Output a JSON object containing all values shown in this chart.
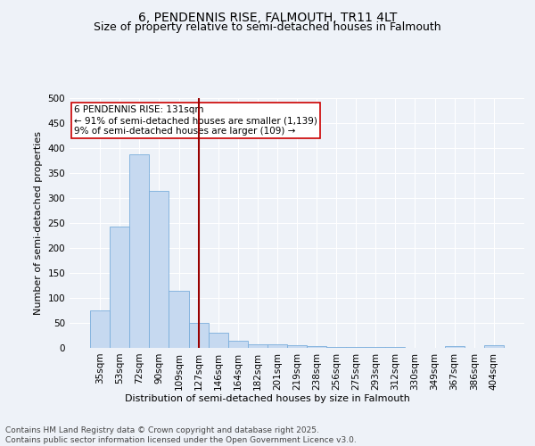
{
  "title": "6, PENDENNIS RISE, FALMOUTH, TR11 4LT",
  "subtitle": "Size of property relative to semi-detached houses in Falmouth",
  "xlabel": "Distribution of semi-detached houses by size in Falmouth",
  "ylabel": "Number of semi-detached properties",
  "categories": [
    "35sqm",
    "53sqm",
    "72sqm",
    "90sqm",
    "109sqm",
    "127sqm",
    "146sqm",
    "164sqm",
    "182sqm",
    "201sqm",
    "219sqm",
    "238sqm",
    "256sqm",
    "275sqm",
    "293sqm",
    "312sqm",
    "330sqm",
    "349sqm",
    "367sqm",
    "386sqm",
    "404sqm"
  ],
  "values": [
    75,
    242,
    388,
    315,
    115,
    50,
    30,
    15,
    7,
    7,
    6,
    3,
    2,
    2,
    1,
    1,
    0,
    0,
    4,
    0,
    5
  ],
  "bar_color": "#c6d9f0",
  "bar_edge_color": "#7aaedc",
  "vline_x_index": 5,
  "vline_color": "#990000",
  "annotation_text": "6 PENDENNIS RISE: 131sqm\n← 91% of semi-detached houses are smaller (1,139)\n9% of semi-detached houses are larger (109) →",
  "annotation_box_color": "#ffffff",
  "annotation_box_edge": "#cc0000",
  "ylim": [
    0,
    500
  ],
  "yticks": [
    0,
    50,
    100,
    150,
    200,
    250,
    300,
    350,
    400,
    450,
    500
  ],
  "footnote": "Contains HM Land Registry data © Crown copyright and database right 2025.\nContains public sector information licensed under the Open Government Licence v3.0.",
  "background_color": "#eef2f8",
  "grid_color": "#ffffff",
  "title_fontsize": 10,
  "subtitle_fontsize": 9,
  "axis_label_fontsize": 8,
  "tick_fontsize": 7.5,
  "annotation_fontsize": 7.5,
  "footnote_fontsize": 6.5
}
